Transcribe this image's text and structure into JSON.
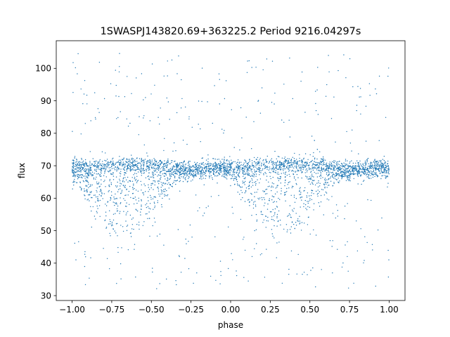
{
  "chart_data": {
    "type": "scatter",
    "title": "1SWASPJ143820.69+363225.2 Period 9216.04297s",
    "xlabel": "phase",
    "ylabel": "flux",
    "xlim": [
      -1.1,
      1.1
    ],
    "ylim": [
      28.5,
      108.5
    ],
    "xticks": [
      -1.0,
      -0.75,
      -0.5,
      -0.25,
      0.0,
      0.25,
      0.5,
      0.75,
      1.0
    ],
    "xtick_labels": [
      "−1.00",
      "−0.75",
      "−0.50",
      "−0.25",
      "0.00",
      "0.25",
      "0.50",
      "0.75",
      "1.00"
    ],
    "yticks": [
      30,
      40,
      50,
      60,
      70,
      80,
      90,
      100
    ],
    "ytick_labels": [
      "30",
      "40",
      "50",
      "60",
      "70",
      "80",
      "90",
      "100"
    ],
    "grid": false,
    "legend": "none",
    "marker_color": "#1f77b4",
    "series": [
      {
        "x": [
          -1.0,
          -0.95,
          -0.9,
          -0.85,
          -0.8,
          -0.75,
          -0.7,
          -0.65,
          -0.6,
          -0.55,
          -0.5,
          -0.45,
          -0.4,
          -0.35,
          -0.3,
          -0.25,
          -0.2,
          -0.15,
          -0.1,
          -0.05,
          0.0,
          0.05,
          0.1,
          0.15,
          0.2,
          0.25,
          0.3,
          0.35,
          0.4,
          0.45,
          0.5,
          0.55,
          0.6,
          0.65,
          0.7,
          0.75,
          0.8,
          0.85,
          0.9,
          0.95,
          1.0
        ],
        "y_upper": [
          69.5,
          69.5,
          69.6,
          69.7,
          69.8,
          70.0,
          70.2,
          70.4,
          70.5,
          70.4,
          70.2,
          70.0,
          69.6,
          69.2,
          68.8,
          68.5,
          68.5,
          68.8,
          69.2,
          69.4,
          69.5,
          69.5,
          69.6,
          69.7,
          69.8,
          70.0,
          70.2,
          70.4,
          70.5,
          70.4,
          70.2,
          70.0,
          69.6,
          69.2,
          68.8,
          68.5,
          68.5,
          68.8,
          69.2,
          69.4,
          69.5
        ],
        "y_lower": [
          66.0,
          62.0,
          58.0,
          54.0,
          51.0,
          49.0,
          48.5,
          48.0,
          48.5,
          50.0,
          53.0,
          57.0,
          61.0,
          64.5,
          67.0,
          68.5,
          69.0,
          69.0,
          69.0,
          68.0,
          66.0,
          62.0,
          58.0,
          54.0,
          51.0,
          49.0,
          48.5,
          48.0,
          48.5,
          50.0,
          53.0,
          57.0,
          61.0,
          64.5,
          67.0,
          68.5,
          69.0,
          69.0,
          69.0,
          68.0,
          66.0
        ]
      }
    ]
  }
}
